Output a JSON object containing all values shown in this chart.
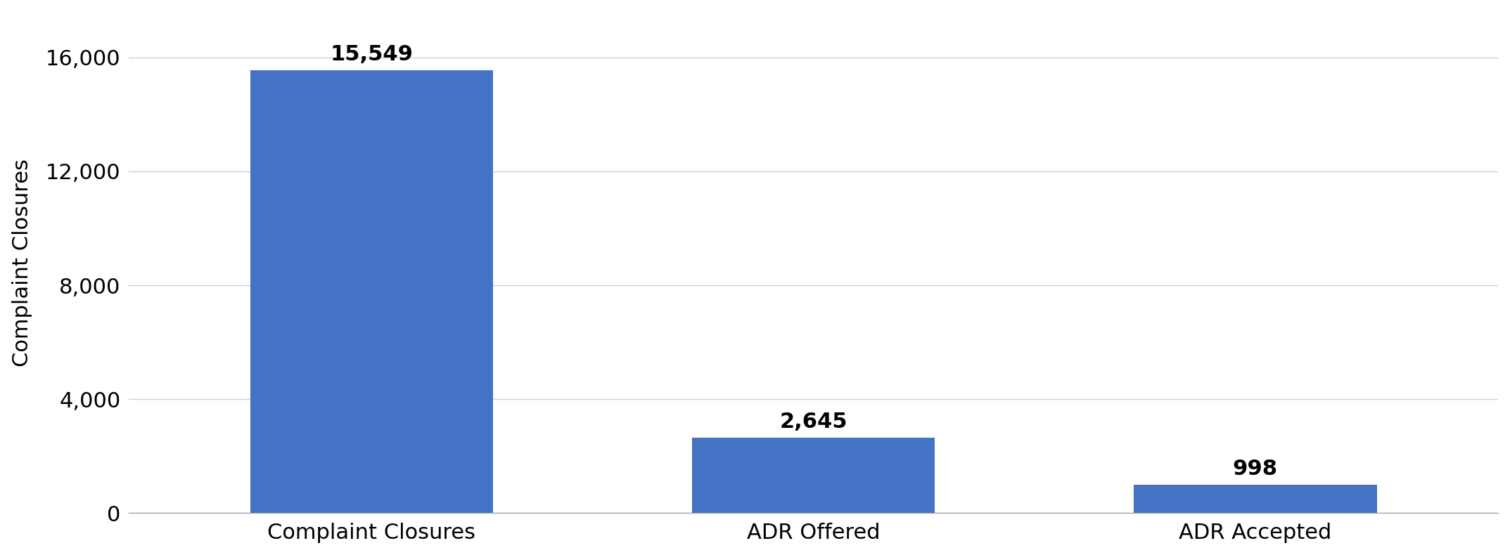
{
  "categories": [
    "Complaint Closures",
    "ADR Offered",
    "ADR Accepted"
  ],
  "values": [
    15549,
    2645,
    998
  ],
  "labels": [
    "15,549",
    "2,645",
    "998"
  ],
  "bar_color": "#4472C4",
  "ylabel": "Complaint Closures",
  "ylim": [
    0,
    17600
  ],
  "yticks": [
    0,
    4000,
    8000,
    12000,
    16000
  ],
  "ytick_labels": [
    "0",
    "4,000",
    "8,000",
    "12,000",
    "16,000"
  ],
  "background_color": "#ffffff",
  "grid_color": "#d0d0d0",
  "bar_width": 0.55,
  "label_fontsize": 22,
  "tick_fontsize": 22,
  "ylabel_fontsize": 22,
  "x_positions": [
    0,
    1,
    2
  ],
  "xlim": [
    -0.55,
    2.55
  ]
}
